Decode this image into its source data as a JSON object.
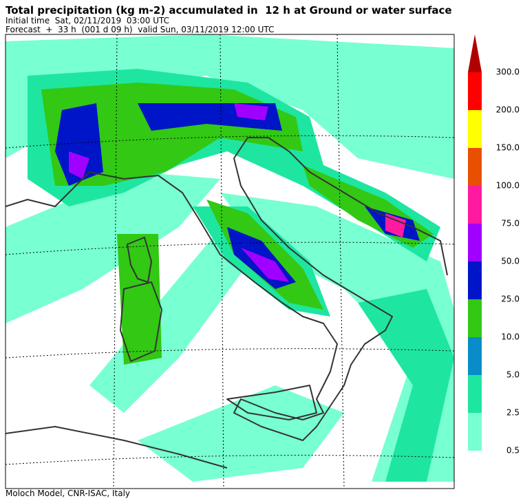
{
  "header": {
    "title": "Total precipitation (kg m-2) accumulated in  12 h at Ground or water surface",
    "initial_time": "Initial time  Sat, 02/11/2019  03:00 UTC",
    "forecast": "Forecast  +  33 h  (001 d 09 h)  valid Sun, 03/11/2019 12:00 UTC"
  },
  "colorbar": {
    "top_color": "#b00000",
    "labels": [
      "300.0",
      "200.0",
      "150.0",
      "100.0",
      "75.0",
      "50.0",
      "25.0",
      "10.0",
      "5.0",
      "2.5",
      "0.5"
    ],
    "colors": [
      "#ff0000",
      "#ffff00",
      "#e85000",
      "#ff1aa0",
      "#a000ff",
      "#0014c8",
      "#32c814",
      "#0a8cc8",
      "#1ee6a0",
      "#78ffd2"
    ]
  },
  "footer": "Moloch Model, CNR-ISAC, Italy"
}
